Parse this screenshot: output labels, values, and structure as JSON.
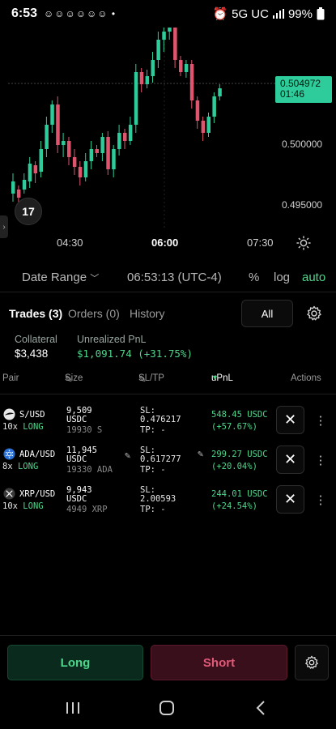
{
  "status_bar": {
    "time": "6:53",
    "notifications": "☺☺☺☺☺☺ •",
    "network": "5G UC",
    "battery": "99%"
  },
  "chart": {
    "current_price": "0.504972",
    "countdown": "01:46",
    "y_ticks": [
      "0.500000",
      "0.495000"
    ],
    "x_ticks": [
      "04:30",
      "06:00",
      "07:30"
    ],
    "logo_text": "17"
  },
  "date_row": {
    "date_range_label": "Date Range",
    "clock": "06:53:13 (UTC-4)",
    "percent_label": "%",
    "log_label": "log",
    "auto_label": "auto"
  },
  "tabs": {
    "trades": "Trades (3)",
    "orders": "Orders (0)",
    "history": "History",
    "filter": "All"
  },
  "summary": {
    "collateral_label": "Collateral",
    "collateral_value": "$3,438",
    "unrealized_label": "Unrealized PnL",
    "unrealized_value": "$1,091.74 (+31.75%)"
  },
  "table": {
    "headers": {
      "pair": "Pair",
      "size": "Size",
      "sltp": "SL/TP",
      "upnl": "uPnL",
      "actions": "Actions"
    },
    "rows": [
      {
        "pair": "S/USD",
        "leverage": "10x",
        "side": "LONG",
        "size_line1": "9,509",
        "size_line2": "USDC",
        "size_line3": "19930 S",
        "sl": "SL:",
        "sl_value": "0.476217",
        "tp": "TP: -",
        "upnl": "548.45 USDC",
        "upnl_pct": "(+57.67%)",
        "icon_color": "#e8e8e8"
      },
      {
        "pair": "ADA/USD",
        "leverage": "8x",
        "side": "LONG",
        "size_line1": "11,945",
        "size_line2": "USDC",
        "size_line3": "19330 ADA",
        "sl": "SL:",
        "sl_value": "0.617277",
        "tp": "TP: -",
        "upnl": "299.27 USDC",
        "upnl_pct": "(+20.04%)",
        "icon_color": "#2a6fd6"
      },
      {
        "pair": "XRP/USD",
        "leverage": "10x",
        "side": "LONG",
        "size_line1": "9,943",
        "size_line2": "USDC",
        "size_line3": "4949 XRP",
        "sl": "SL:",
        "sl_value": "2.00593",
        "tp": "TP: -",
        "upnl": "244.01 USDC",
        "upnl_pct": "(+24.54%)",
        "icon_color": "#555555"
      }
    ]
  },
  "actions": {
    "long": "Long",
    "short": "Short"
  },
  "colors": {
    "up": "#2ecc9a",
    "down": "#e0556e",
    "accent_green": "#4ed68a"
  }
}
